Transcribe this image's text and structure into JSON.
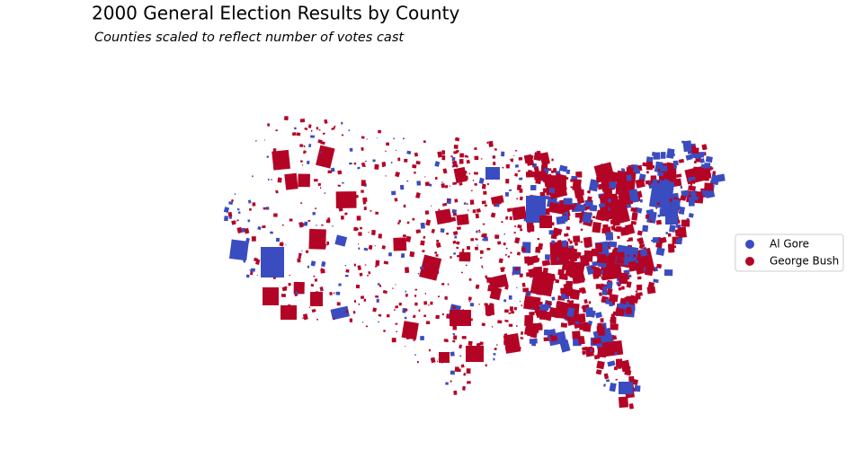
{
  "title": "2000 General Election Results by County",
  "subtitle": "Counties scaled to reflect number of votes cast",
  "legend": {
    "items": [
      {
        "label": "Al Gore",
        "color": "#3b4cc0"
      },
      {
        "label": "George Bush",
        "color": "#b40426"
      }
    ]
  }
}
